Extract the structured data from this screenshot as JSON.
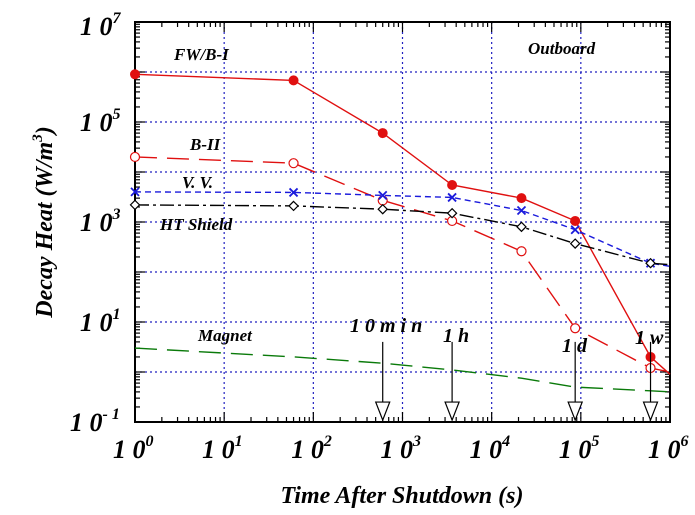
{
  "chart_data": {
    "type": "line",
    "title": "",
    "xlabel": "Time  After  Shutdown  (s)",
    "ylabel_main": "Decay  Heat  (W/m",
    "ylabel_sup": "3",
    "ylabel_tail": ")",
    "x_scale": "log",
    "y_scale": "log",
    "xlim": [
      1,
      1000000
    ],
    "ylim": [
      0.1,
      10000000
    ],
    "grid": "dotted-blue",
    "x_ticks": [
      {
        "base": "1 0",
        "exp": "0",
        "value": 1
      },
      {
        "base": "1 0",
        "exp": "1",
        "value": 10
      },
      {
        "base": "1 0",
        "exp": "2",
        "value": 100
      },
      {
        "base": "1 0",
        "exp": "3",
        "value": 1000
      },
      {
        "base": "1 0",
        "exp": "4",
        "value": 10000
      },
      {
        "base": "1 0",
        "exp": "5",
        "value": 100000
      },
      {
        "base": "1 0",
        "exp": "6",
        "value": 1000000
      }
    ],
    "y_ticks": [
      {
        "base": "1 0",
        "exp": "7",
        "value": 10000000
      },
      {
        "base": "1 0",
        "exp": "5",
        "value": 100000
      },
      {
        "base": "1 0",
        "exp": "3",
        "value": 1000
      },
      {
        "base": "1 0",
        "exp": "1",
        "value": 10
      },
      {
        "base": "1 0",
        "exp": "-1",
        "value": 0.1
      }
    ],
    "y_tick_label_last": "1 0",
    "y_tick_exp_last": "-",
    "y_tick_exp_last_tail": "1",
    "series": [
      {
        "name": "FW/B-I",
        "color": "#e01010",
        "dash": "solid",
        "marker": "filled-circle",
        "x": [
          1,
          60,
          600,
          3600,
          21600,
          86400,
          604800
        ],
        "y": [
          900000,
          680000,
          60000,
          5500,
          3000,
          1050,
          2.0
        ],
        "extend_to": [
          1000000,
          0.9
        ]
      },
      {
        "name": "B-II",
        "color": "#e01010",
        "dash": "long",
        "marker": "open-circle",
        "x": [
          1,
          60,
          600,
          3600,
          21600,
          86400,
          604800
        ],
        "y": [
          20000,
          15000,
          2700,
          1050,
          260,
          7.5,
          1.2
        ],
        "extend_to": [
          1000000,
          1.0
        ]
      },
      {
        "name": "V.V.",
        "color": "#1a1adc",
        "dash": "short",
        "marker": "x",
        "x": [
          1,
          60,
          600,
          3600,
          21600,
          86400,
          604800
        ],
        "y": [
          4000,
          3900,
          3400,
          3100,
          1700,
          700,
          150
        ],
        "extend_to": [
          1000000,
          130
        ]
      },
      {
        "name": "HT  Shield",
        "color": "#000000",
        "dash": "dashdot",
        "marker": "open-diamond",
        "x": [
          1,
          60,
          600,
          3600,
          21600,
          86400,
          604800
        ],
        "y": [
          2200,
          2100,
          1800,
          1500,
          800,
          370,
          150
        ],
        "extend_to": [
          1000000,
          140
        ]
      },
      {
        "name": "Magnet",
        "color": "#0a7a0a",
        "dash": "long",
        "marker": "none",
        "x": [
          1,
          60,
          600,
          3600,
          21600,
          86400,
          604800
        ],
        "y": [
          3.0,
          2.0,
          1.5,
          1.1,
          0.75,
          0.5,
          0.42
        ],
        "extend_to": [
          1000000,
          0.4
        ]
      }
    ],
    "annotations": {
      "outboard": "Outboard",
      "fw_label": "FW/B-I",
      "b2_label": "B-II",
      "vv_label": "V. V.",
      "ht_label": "HT  Shield",
      "magnet_label": "Magnet",
      "t_10min": "1 0 m i n",
      "t_1h": "1 h",
      "t_1d": "1 d",
      "t_1w": "1 w"
    },
    "arrows": [
      {
        "x": 600,
        "y_from": 4,
        "y_to": 0.12
      },
      {
        "x": 3600,
        "y_from": 4,
        "y_to": 0.12
      },
      {
        "x": 86400,
        "y_from": 4,
        "y_to": 0.12
      },
      {
        "x": 604800,
        "y_from": 4,
        "y_to": 0.12
      }
    ]
  }
}
